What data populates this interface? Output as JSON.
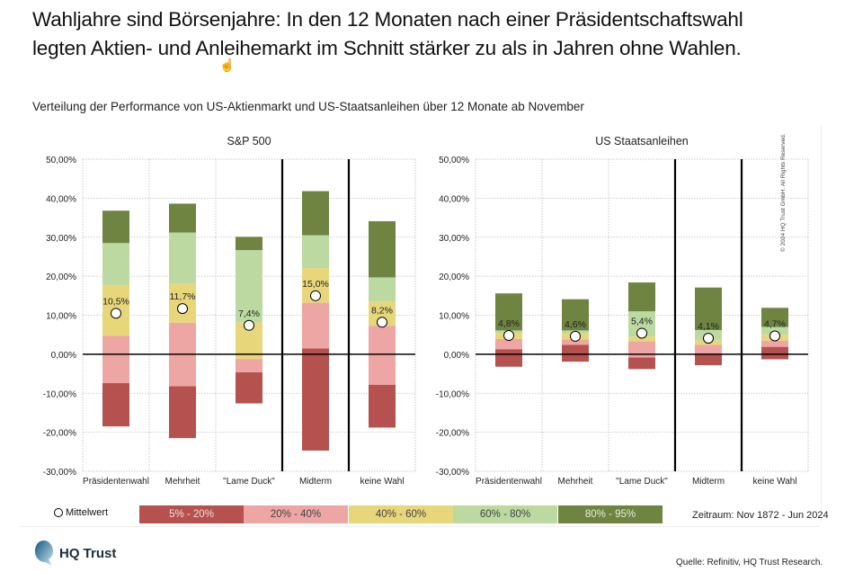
{
  "title_line1": "Wahljahre sind Börsenjahre: In den 12 Monaten nach einer Präsidentschaftswahl",
  "title_line2": "legten Aktien- und Anleihemarkt im Schnitt stärker zu als in Jahren ohne Wahlen.",
  "subtitle": "Verteilung der Performance von US-Aktienmarkt und US-Staatsanleihen über 12 Monate ab November",
  "cursor_icon": "hand-pointer-icon",
  "legend": {
    "mean_label": "Mittelwert",
    "bands": [
      {
        "label": "5% - 20%",
        "color": "#b5524f",
        "text_color": "#f3dede"
      },
      {
        "label": "20% - 40%",
        "color": "#eda6a3",
        "text_color": "#444"
      },
      {
        "label": "40% - 60%",
        "color": "#e8d77a",
        "text_color": "#444"
      },
      {
        "label": "60% - 80%",
        "color": "#bcd9a1",
        "text_color": "#444"
      },
      {
        "label": "80% - 95%",
        "color": "#6f8441",
        "text_color": "#e8eddc"
      }
    ]
  },
  "zeitraum": "Zeitraum: Nov 1872 - Jun 2024",
  "source": "Quelle: Refinitiv, HQ Trust Research.",
  "copyright": "© 2024 HQ Trust GmbH. All Rights Reserved.",
  "logo_text": "HQ Trust",
  "chart_data": [
    {
      "type": "bar",
      "subtype": "stacked-percentile-bands",
      "title": "S&P 500",
      "categories": [
        "Präsidentenwahl",
        "Mehrheit",
        "\"Lame Duck\"",
        "Midterm",
        "keine Wahl"
      ],
      "ylim": [
        -30,
        50
      ],
      "yticks": [
        "50,00%",
        "40,00%",
        "30,00%",
        "20,00%",
        "10,00%",
        "0,00%",
        "-10,00%",
        "-20,00%",
        "-30,00%"
      ],
      "grid": true,
      "percentiles": {
        "p5": [
          -18.5,
          -21.5,
          -12.6,
          -24.7,
          -18.8
        ],
        "p20": [
          -7.4,
          -8.2,
          -4.6,
          1.5,
          -7.8
        ],
        "p40": [
          4.7,
          8.1,
          -1.2,
          13.2,
          7.3
        ],
        "p60": [
          17.7,
          18.1,
          8.2,
          22.1,
          13.5
        ],
        "p80": [
          28.5,
          31.2,
          26.7,
          30.5,
          19.7
        ],
        "p95": [
          36.8,
          38.6,
          30.1,
          41.8,
          34.1
        ]
      },
      "mean": [
        10.5,
        11.7,
        7.4,
        15.0,
        8.2
      ],
      "mean_labels": [
        "10,5%",
        "11,7%",
        "7,4%",
        "15,0%",
        "8,2%"
      ]
    },
    {
      "type": "bar",
      "subtype": "stacked-percentile-bands",
      "title": "US Staatsanleihen",
      "categories": [
        "Präsidentenwahl",
        "Mehrheit",
        "\"Lame Duck\"",
        "Midterm",
        "keine Wahl"
      ],
      "ylim": [
        -30,
        50
      ],
      "yticks": [
        "50,00%",
        "40,00%",
        "30,00%",
        "20,00%",
        "10,00%",
        "0,00%",
        "-10,00%",
        "-20,00%",
        "-30,00%"
      ],
      "grid": true,
      "percentiles": {
        "p5": [
          -3.2,
          -1.9,
          -3.8,
          -2.8,
          -1.3
        ],
        "p20": [
          1.3,
          2.4,
          -0.8,
          0.2,
          1.9
        ],
        "p40": [
          3.9,
          3.8,
          3.3,
          2.4,
          3.5
        ],
        "p60": [
          5.5,
          5.3,
          4.5,
          3.6,
          5.0
        ],
        "p80": [
          6.1,
          6.1,
          11.0,
          6.2,
          7.0
        ],
        "p95": [
          15.6,
          14.1,
          18.4,
          17.1,
          11.9
        ]
      },
      "mean": [
        4.8,
        4.6,
        5.4,
        4.1,
        4.7
      ],
      "mean_labels": [
        "4,8%",
        "4,6%",
        "5,4%",
        "4,1%",
        "4,7%"
      ]
    }
  ]
}
